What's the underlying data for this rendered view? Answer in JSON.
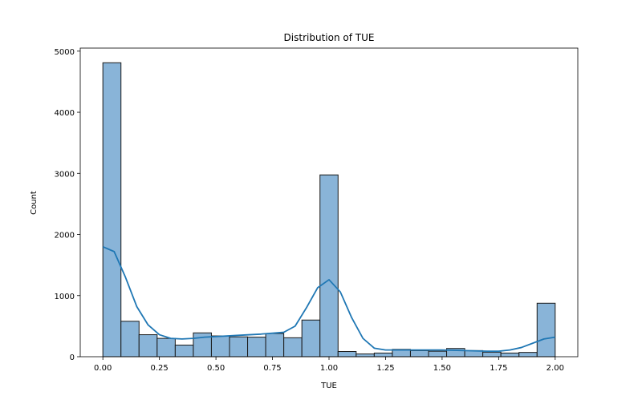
{
  "chart_data": {
    "type": "bar",
    "title": "Distribution of TUE",
    "xlabel": "TUE",
    "ylabel": "Count",
    "xlim": [
      -0.1,
      2.1
    ],
    "ylim": [
      0,
      5050
    ],
    "xticks": [
      0.0,
      0.25,
      0.5,
      0.75,
      1.0,
      1.25,
      1.5,
      1.75,
      2.0
    ],
    "xtick_labels": [
      "0.00",
      "0.25",
      "0.50",
      "0.75",
      "1.00",
      "1.25",
      "1.50",
      "1.75",
      "2.00"
    ],
    "yticks": [
      0,
      1000,
      2000,
      3000,
      4000,
      5000
    ],
    "ytick_labels": [
      "0",
      "1000",
      "2000",
      "3000",
      "4000",
      "5000"
    ],
    "bin_start": 0.0,
    "bin_width": 0.08,
    "values": [
      4810,
      580,
      360,
      300,
      190,
      390,
      340,
      325,
      320,
      380,
      310,
      600,
      2975,
      85,
      45,
      60,
      120,
      100,
      90,
      135,
      100,
      75,
      60,
      70,
      875
    ],
    "kde": {
      "x": [
        0.0,
        0.05,
        0.1,
        0.15,
        0.2,
        0.25,
        0.3,
        0.35,
        0.4,
        0.45,
        0.5,
        0.6,
        0.7,
        0.8,
        0.85,
        0.9,
        0.95,
        1.0,
        1.05,
        1.1,
        1.15,
        1.2,
        1.25,
        1.3,
        1.4,
        1.5,
        1.6,
        1.7,
        1.75,
        1.8,
        1.85,
        1.9,
        1.95,
        2.0
      ],
      "y": [
        1800,
        1720,
        1300,
        820,
        520,
        360,
        300,
        290,
        300,
        320,
        330,
        350,
        370,
        400,
        500,
        800,
        1130,
        1260,
        1060,
        640,
        300,
        140,
        110,
        110,
        110,
        110,
        100,
        90,
        90,
        110,
        150,
        220,
        290,
        320
      ]
    },
    "bar_color": "#89b4d8",
    "bar_edge_color": "#1a1a1a",
    "line_color": "#1f77b4",
    "grid": false
  }
}
